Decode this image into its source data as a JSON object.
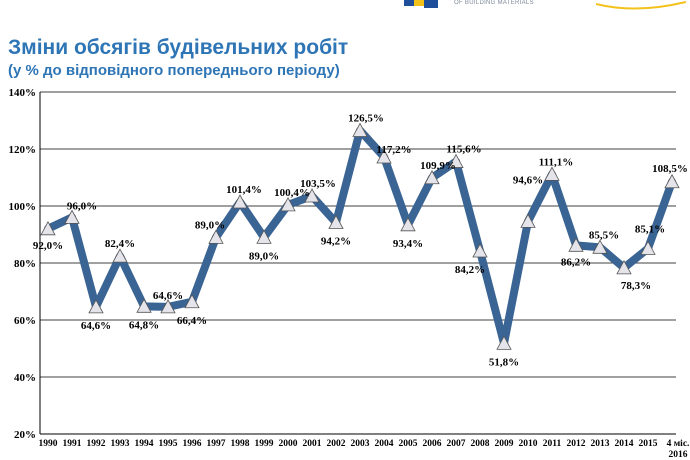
{
  "header": {
    "logo_text": "OF BUILDING MATERIALS",
    "accent_blue": "#1f4e9a",
    "accent_yellow": "#f2c21a"
  },
  "title": "Зміни обсягів будівельних робіт",
  "subtitle": "(у % до відповідного попереднього періоду)",
  "chart_data": {
    "type": "line",
    "title": "Зміни обсягів будівельних робіт",
    "subtitle": "(у % до відповідного попереднього періоду)",
    "xlabel": "",
    "ylabel": "",
    "categories": [
      "1990",
      "1991",
      "1992",
      "1993",
      "1994",
      "1995",
      "1996",
      "1997",
      "1998",
      "1999",
      "2000",
      "2001",
      "2002",
      "2003",
      "2004",
      "2005",
      "2006",
      "2007",
      "2008",
      "2009",
      "2010",
      "2011",
      "2012",
      "2013",
      "2014",
      "2015",
      "4 міс. 2016"
    ],
    "series": [
      {
        "values": [
          92.0,
          96.0,
          64.6,
          82.4,
          64.8,
          64.6,
          66.4,
          89.0,
          101.4,
          89.0,
          100.4,
          103.5,
          94.2,
          126.5,
          117.2,
          93.4,
          109.9,
          115.6,
          84.2,
          51.8,
          94.6,
          111.1,
          86.2,
          85.5,
          78.3,
          85.1,
          108.5
        ],
        "labels": [
          "92,0%",
          "96,0%",
          "64,6%",
          "82,4%",
          "64,8%",
          "64,6%",
          "66,4%",
          "89,0%",
          "101,4%",
          "89,0%",
          "100,4%",
          "103,5%",
          "94,2%",
          "126,5%",
          "117,2%",
          "93,4%",
          "109,9%",
          "115,6%",
          "84,2%",
          "51,8%",
          "94,6%",
          "111,1%",
          "86,2%",
          "85,5%",
          "78,3%",
          "85,1%",
          "108,5%"
        ],
        "color": "#3a6494",
        "marker_color": "#e4e4ea"
      }
    ],
    "yticks": [
      "20%",
      "40%",
      "60%",
      "80%",
      "100%",
      "120%",
      "140%"
    ],
    "ylim": [
      20,
      140
    ],
    "grid": true,
    "legend": "none"
  }
}
